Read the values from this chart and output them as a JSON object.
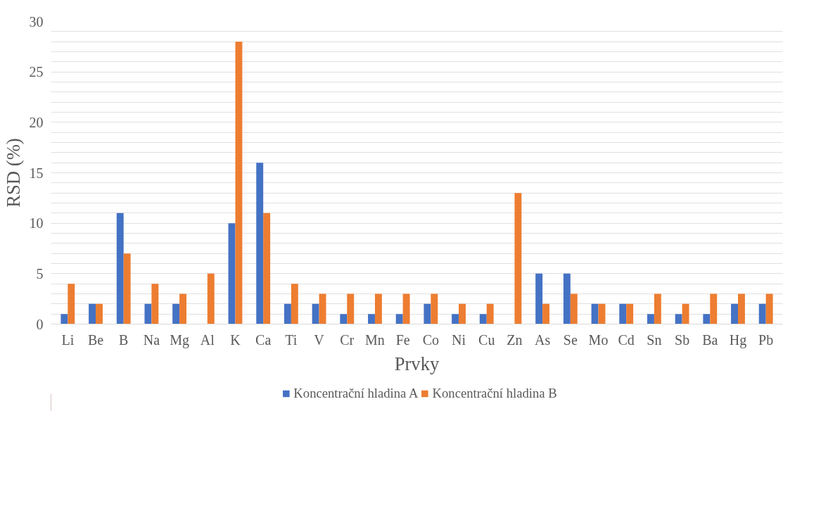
{
  "chart_data": {
    "type": "bar",
    "xlabel": "Prvky",
    "ylabel": "RSD (%)",
    "categories": [
      "Li",
      "Be",
      "B",
      "Na",
      "Mg",
      "Al",
      "K",
      "Ca",
      "Ti",
      "V",
      "Cr",
      "Mn",
      "Fe",
      "Co",
      "Ni",
      "Cu",
      "Zn",
      "As",
      "Se",
      "Mo",
      "Cd",
      "Sn",
      "Sb",
      "Ba",
      "Hg",
      "Pb"
    ],
    "series": [
      {
        "name": "Koncentrační hladina A",
        "color": "#4472c4",
        "values": [
          1,
          2,
          11,
          2,
          2,
          null,
          10,
          16,
          2,
          2,
          1,
          1,
          1,
          2,
          1,
          1,
          null,
          5,
          5,
          2,
          2,
          1,
          1,
          1,
          2,
          2
        ]
      },
      {
        "name": "Koncentrační hladina B",
        "color": "#ed7d31",
        "values": [
          4,
          2,
          7,
          4,
          3,
          5,
          28,
          11,
          4,
          3,
          3,
          3,
          3,
          3,
          2,
          2,
          13,
          2,
          3,
          2,
          2,
          3,
          2,
          3,
          3,
          3
        ]
      }
    ],
    "ylim": [
      0,
      30
    ],
    "yticks": [
      0,
      {
        "value": 1,
        "label": null
      },
      {
        "value": 2,
        "label": null
      },
      {
        "value": 3,
        "label": null
      },
      {
        "value": 4,
        "label": null
      },
      5,
      {
        "value": 6,
        "label": null
      },
      {
        "value": 7,
        "label": null
      },
      {
        "value": 8,
        "label": null
      },
      {
        "value": 9,
        "label": null
      },
      10,
      {
        "value": 11,
        "label": null
      },
      {
        "value": 12,
        "label": null
      },
      {
        "value": 13,
        "label": null
      },
      {
        "value": 14,
        "label": null
      },
      15,
      {
        "value": 16,
        "label": null
      },
      {
        "value": 17,
        "label": null
      },
      {
        "value": 18,
        "label": null
      },
      {
        "value": 19,
        "label": null
      },
      20,
      {
        "value": 21,
        "label": null
      },
      {
        "value": 22,
        "label": null
      },
      {
        "value": 23,
        "label": null
      },
      {
        "value": 24,
        "label": null
      },
      25,
      {
        "value": 26,
        "label": null
      },
      {
        "value": 27,
        "label": null
      },
      {
        "value": 28,
        "label": null
      },
      {
        "value": 29,
        "label": null
      },
      30
    ],
    "grid": "y",
    "legend": "bottom"
  }
}
